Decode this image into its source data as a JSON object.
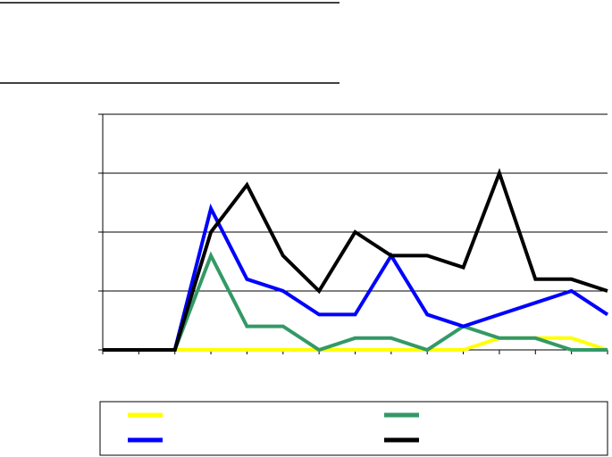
{
  "chart_data": {
    "type": "line",
    "categories": [
      null,
      null,
      null,
      null,
      null,
      null,
      null,
      null,
      null,
      null,
      null,
      null,
      null,
      null,
      null
    ],
    "series": [
      {
        "color": "#ffff00",
        "values": [
          0,
          0,
          0,
          0,
          0,
          0,
          0,
          0,
          0,
          0,
          0,
          0.2,
          0.2,
          0.2,
          0
        ]
      },
      {
        "color": "#339966",
        "values": [
          0,
          0,
          0,
          1.6,
          0.4,
          0.4,
          0,
          0.2,
          0.2,
          0,
          0.4,
          0.2,
          0.2,
          0,
          0
        ]
      },
      {
        "color": "#0000ff",
        "values": [
          0,
          0,
          0,
          2.4,
          1.2,
          1,
          0.6,
          0.6,
          1.6,
          0.6,
          0.4,
          0.6,
          0.8,
          1,
          0.6
        ]
      },
      {
        "color": "#000000",
        "values": [
          0,
          0,
          0,
          2,
          2.8,
          1.6,
          1,
          2,
          1.6,
          1.6,
          1.4,
          3,
          1.2,
          1.2,
          1
        ]
      }
    ],
    "ylim": [
      0,
      4
    ],
    "yticks": [
      0,
      1,
      2,
      3,
      4
    ],
    "grid": true
  }
}
